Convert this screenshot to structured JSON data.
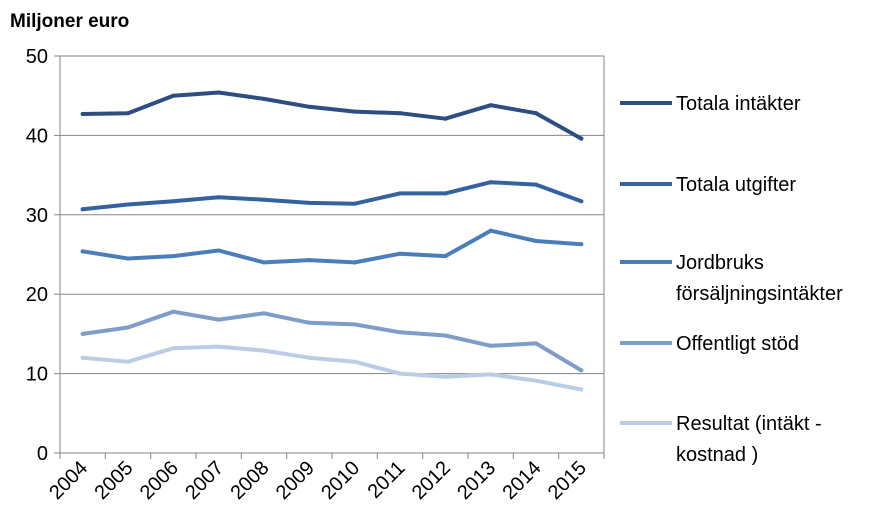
{
  "chart_data": {
    "type": "line",
    "title": "",
    "unit_label": "Miljoner euro",
    "xlabel": "",
    "ylabel": "",
    "ylim": [
      0,
      50
    ],
    "yticks": [
      0,
      10,
      20,
      30,
      40,
      50
    ],
    "grid": "horizontal",
    "legend": "right",
    "categories": [
      "2004",
      "2005",
      "2006",
      "2007",
      "2008",
      "2009",
      "2010",
      "2011",
      "2012",
      "2013",
      "2014",
      "2015"
    ],
    "series": [
      {
        "name": "Totala intäkter",
        "legend_lines": [
          "Totala intäkter"
        ],
        "color": "#2C4E80",
        "values": [
          42.7,
          42.8,
          45.0,
          45.4,
          44.6,
          43.6,
          43.0,
          42.8,
          42.1,
          43.8,
          42.8,
          39.6
        ]
      },
      {
        "name": "Totala utgifter",
        "legend_lines": [
          "Totala utgifter"
        ],
        "color": "#34629E",
        "values": [
          30.7,
          31.3,
          31.7,
          32.2,
          31.9,
          31.5,
          31.4,
          32.7,
          32.7,
          34.1,
          33.8,
          31.7
        ]
      },
      {
        "name": "Jordbruks försäljningsintäkter",
        "legend_lines": [
          "Jordbruks",
          "försäljningsintäkter"
        ],
        "color": "#4A7EBB",
        "values": [
          25.4,
          24.5,
          24.8,
          25.5,
          24.0,
          24.3,
          24.0,
          25.1,
          24.8,
          28.0,
          26.7,
          26.3
        ]
      },
      {
        "name": "Offentligt stöd",
        "legend_lines": [
          "Offentligt stöd"
        ],
        "color": "#7F9DC9",
        "values": [
          15.0,
          15.8,
          17.8,
          16.8,
          17.6,
          16.4,
          16.2,
          15.2,
          14.8,
          13.5,
          13.8,
          10.4
        ]
      },
      {
        "name": "Resultat (intäkt - kostnad )",
        "legend_lines": [
          "Resultat (intäkt -",
          "kostnad )"
        ],
        "color": "#B9CDE5",
        "values": [
          12.0,
          11.5,
          13.2,
          13.4,
          12.9,
          12.0,
          11.5,
          10.0,
          9.6,
          9.9,
          9.1,
          8.0
        ]
      }
    ]
  }
}
